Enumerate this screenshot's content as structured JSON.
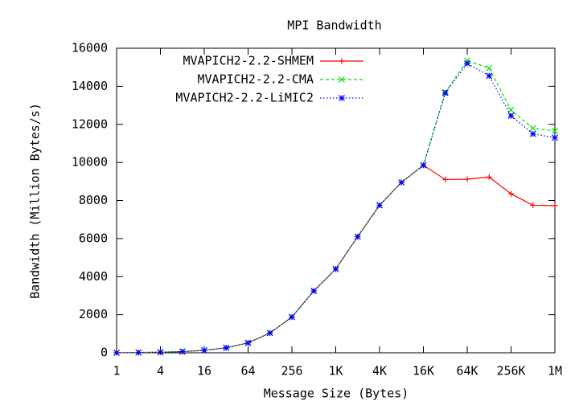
{
  "chart_data": {
    "type": "line",
    "title": "MPI Bandwidth",
    "x_label": "Message Size (Bytes)",
    "y_label": "Bandwidth (Million Bytes/s)",
    "categories": [
      "1",
      null,
      "4",
      null,
      "16",
      null,
      "64",
      null,
      "256",
      null,
      "1K",
      null,
      "4K",
      null,
      "16K",
      null,
      "64K",
      null,
      "256K",
      null,
      "1M"
    ],
    "series": [
      {
        "name": "MVAPICH2-2.2-SHMEM",
        "color": "#ff0000",
        "marker": "plus",
        "dash": "solid",
        "values": [
          0,
          15,
          30,
          60,
          130,
          260,
          520,
          1040,
          1880,
          3250,
          4400,
          6100,
          7750,
          8950,
          9850,
          9100,
          9120,
          9230,
          8350,
          7750,
          7730
        ]
      },
      {
        "name": "MVAPICH2-2.2-CMA",
        "color": "#00e000",
        "marker": "cross",
        "dash": "dashed",
        "values": [
          0,
          15,
          30,
          60,
          130,
          260,
          520,
          1040,
          1880,
          3250,
          4400,
          6100,
          7750,
          8950,
          9850,
          13700,
          15350,
          14950,
          12750,
          11800,
          11650
        ]
      },
      {
        "name": "MVAPICH2-2.2-LiMIC2",
        "color": "#0000ff",
        "marker": "star",
        "dash": "dotted",
        "values": [
          0,
          15,
          30,
          60,
          130,
          260,
          520,
          1040,
          1880,
          3250,
          4400,
          6100,
          7750,
          8950,
          9850,
          13650,
          15200,
          14550,
          12450,
          11500,
          11300
        ]
      }
    ],
    "ylim": [
      0,
      16000
    ],
    "yticks": [
      0,
      2000,
      4000,
      6000,
      8000,
      10000,
      12000,
      14000,
      16000
    ],
    "grid": false,
    "legend": "top-center"
  }
}
